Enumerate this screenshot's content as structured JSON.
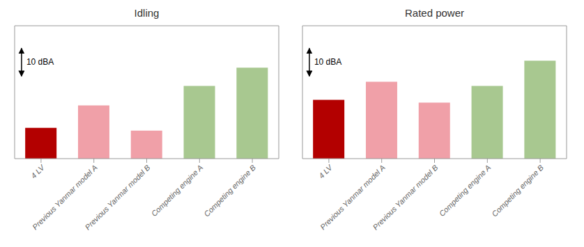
{
  "chart_data": [
    {
      "type": "bar",
      "title": "Idling",
      "categories": [
        "4 LV",
        "Previous Yanmar model A",
        "Previous Yanmar model B",
        "Competing engine A",
        "Competing engine B"
      ],
      "values": [
        2.2,
        3.8,
        2.0,
        5.2,
        6.5
      ],
      "colors": [
        "#b30000",
        "#f0a0a8",
        "#f0a0a8",
        "#a8c890",
        "#a8c890"
      ],
      "ylim": [
        0,
        9.5
      ],
      "tick_labels": "x",
      "grid": false,
      "annotations": [
        {
          "text": "10 dBA",
          "y": [
            5.89,
            7.89
          ]
        }
      ]
    },
    {
      "type": "bar",
      "title": "Rated power",
      "categories": [
        "4 LV",
        "Previous Yanmar model A",
        "Previous Yanmar model B",
        "Competing engine A",
        "Competing engine B"
      ],
      "values": [
        4.2,
        5.5,
        4.0,
        5.2,
        7.0
      ],
      "colors": [
        "#b30000",
        "#f0a0a8",
        "#f0a0a8",
        "#a8c890",
        "#a8c890"
      ],
      "ylim": [
        0,
        9.5
      ],
      "tick_labels": "x",
      "grid": false,
      "annotations": [
        {
          "text": "10 dBA",
          "y": [
            5.89,
            7.89
          ]
        }
      ]
    }
  ]
}
